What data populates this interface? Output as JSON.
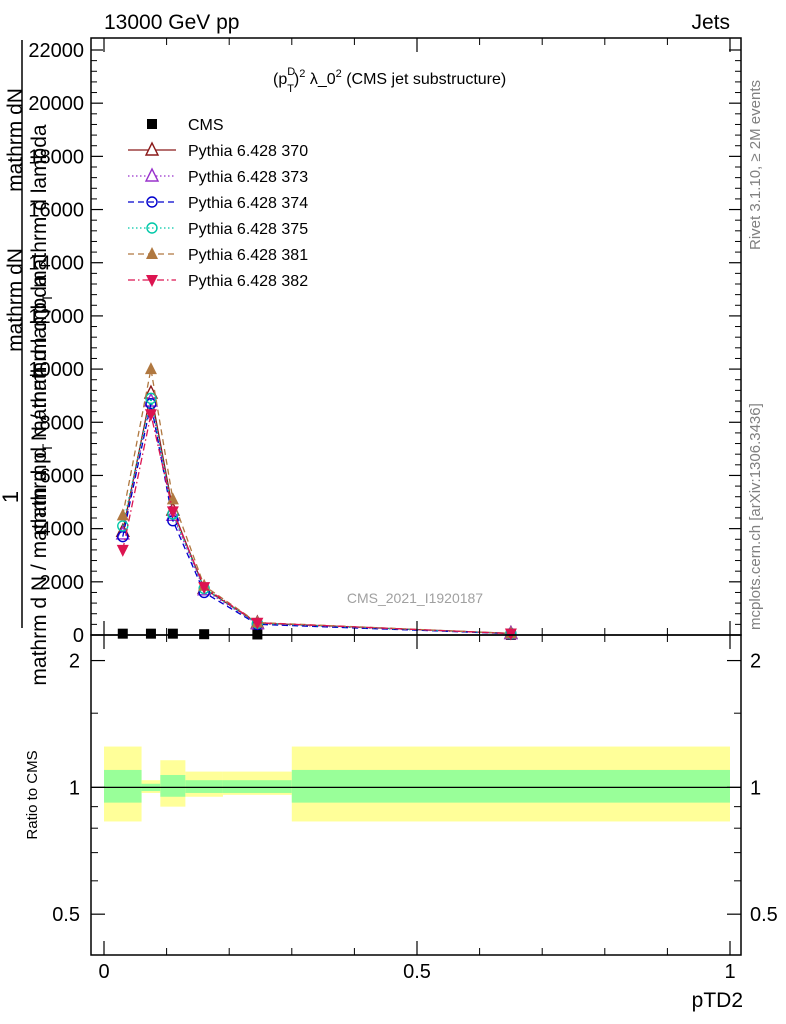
{
  "header": {
    "left": "13000 GeV pp",
    "right": "Jets"
  },
  "plot_title": {
    "pre": "(p",
    "sup1": "D",
    "sub1": "T",
    "close": ")",
    "sup2": "2",
    "mid": " λ_0",
    "sup3": "2",
    "post": " (CMS jet substructure)"
  },
  "side_texts": {
    "rivet": "Rivet 3.1.10, ≥ 2M events",
    "mcplots": "mcplots.cern.ch [arXiv:1306.3436]"
  },
  "watermark": "CMS_2021_I1920187",
  "ylabel_main": {
    "one": "1",
    "numerator": "mathrm dN",
    "denominator": "mathrm d N / mathrm d p",
    "denominator_sub": "T",
    "denominator_post": " mathrm d lambda",
    "numerator_full": "mathrm dN",
    "denominator_line2": "mathrm d N / mathrm d p",
    "denominator_line2_sub": "T",
    "denominator_line2_post": " mathrm d lambda"
  },
  "ylabel_ratio": "Ratio to CMS",
  "xlabel": "pTD2",
  "chart_data": [
    {
      "type": "line",
      "title": "(p_T^D)^2 λ_0^2 (CMS jet substructure)",
      "xlabel": "pTD2",
      "ylabel": "1 / (mathrm dN/mathrm dp_T mathrm dlambda) mathrm dN / mathrm dlambda",
      "xlim": [
        0,
        1
      ],
      "ylim": [
        0,
        22000
      ],
      "yticks": [
        0,
        2000,
        4000,
        6000,
        8000,
        10000,
        12000,
        14000,
        16000,
        18000,
        20000,
        22000
      ],
      "ytick_labels": [
        "0",
        "2000",
        "4000",
        "6000",
        "8000",
        "10000",
        "12000",
        "14000",
        "16000",
        "18000",
        "20000",
        "22000"
      ],
      "legend_position": "top-left",
      "series": [
        {
          "name": "CMS",
          "color": "#000000",
          "marker": "square",
          "line": "none",
          "x": [
            0.03,
            0.075,
            0.11,
            0.16,
            0.245,
            0.65
          ],
          "y": [
            50,
            50,
            50,
            30,
            20,
            5
          ]
        },
        {
          "name": "Pythia 6.428 370",
          "color": "#8b1a1a",
          "marker": "triangle-open",
          "line": "solid",
          "x": [
            0.03,
            0.075,
            0.11,
            0.16,
            0.245,
            0.65
          ],
          "y": [
            3900,
            9100,
            4700,
            1750,
            450,
            60
          ]
        },
        {
          "name": "Pythia 6.428 373",
          "color": "#9932cc",
          "marker": "triangle-open",
          "line": "dotted",
          "x": [
            0.03,
            0.075,
            0.11,
            0.16,
            0.245,
            0.65
          ],
          "y": [
            3800,
            8800,
            4500,
            1700,
            420,
            55
          ]
        },
        {
          "name": "Pythia 6.428 374",
          "color": "#0000cd",
          "marker": "circle-open",
          "line": "dashed",
          "x": [
            0.03,
            0.075,
            0.11,
            0.16,
            0.245,
            0.65
          ],
          "y": [
            3700,
            8700,
            4300,
            1600,
            400,
            50
          ]
        },
        {
          "name": "Pythia 6.428 375",
          "color": "#00c8a8",
          "marker": "circle-open",
          "line": "dotted",
          "x": [
            0.03,
            0.075,
            0.11,
            0.16,
            0.245,
            0.65
          ],
          "y": [
            4100,
            8900,
            4550,
            1750,
            440,
            55
          ]
        },
        {
          "name": "Pythia 6.428 381",
          "color": "#b07840",
          "marker": "triangle-filled",
          "line": "dashed",
          "x": [
            0.03,
            0.075,
            0.11,
            0.16,
            0.245,
            0.65
          ],
          "y": [
            4500,
            10000,
            5100,
            1850,
            470,
            60
          ]
        },
        {
          "name": "Pythia 6.428 382",
          "color": "#dc1450",
          "marker": "triangle-down-filled",
          "line": "dashdot",
          "x": [
            0.03,
            0.075,
            0.11,
            0.16,
            0.245,
            0.65
          ],
          "y": [
            3200,
            8300,
            4650,
            1800,
            460,
            55
          ]
        }
      ]
    },
    {
      "type": "area",
      "ylabel": "Ratio to CMS",
      "xlabel": "pTD2",
      "xlim": [
        0,
        1
      ],
      "ylim": [
        0.4,
        2.3
      ],
      "scale": "log",
      "yticks": [
        0.5,
        1,
        2
      ],
      "ytick_labels": [
        "0.5",
        "1",
        "2"
      ],
      "xticks": [
        0,
        0.5,
        1
      ],
      "xtick_labels": [
        "0",
        "0.5",
        "1"
      ],
      "bins": [
        {
          "x0": 0.0,
          "x1": 0.06,
          "inner": [
            0.92,
            1.1
          ],
          "outer": [
            0.83,
            1.25
          ]
        },
        {
          "x0": 0.06,
          "x1": 0.09,
          "inner": [
            0.98,
            1.02
          ],
          "outer": [
            0.97,
            1.04
          ]
        },
        {
          "x0": 0.09,
          "x1": 0.13,
          "inner": [
            0.95,
            1.07
          ],
          "outer": [
            0.9,
            1.16
          ]
        },
        {
          "x0": 0.13,
          "x1": 0.19,
          "inner": [
            0.97,
            1.04
          ],
          "outer": [
            0.95,
            1.09
          ]
        },
        {
          "x0": 0.19,
          "x1": 0.3,
          "inner": [
            0.97,
            1.04
          ],
          "outer": [
            0.96,
            1.09
          ]
        },
        {
          "x0": 0.3,
          "x1": 1.0,
          "inner": [
            0.92,
            1.1
          ],
          "outer": [
            0.83,
            1.25
          ]
        }
      ],
      "reference_line": 1,
      "inner_color": "#99ff99",
      "outer_color": "#ffff99"
    }
  ]
}
